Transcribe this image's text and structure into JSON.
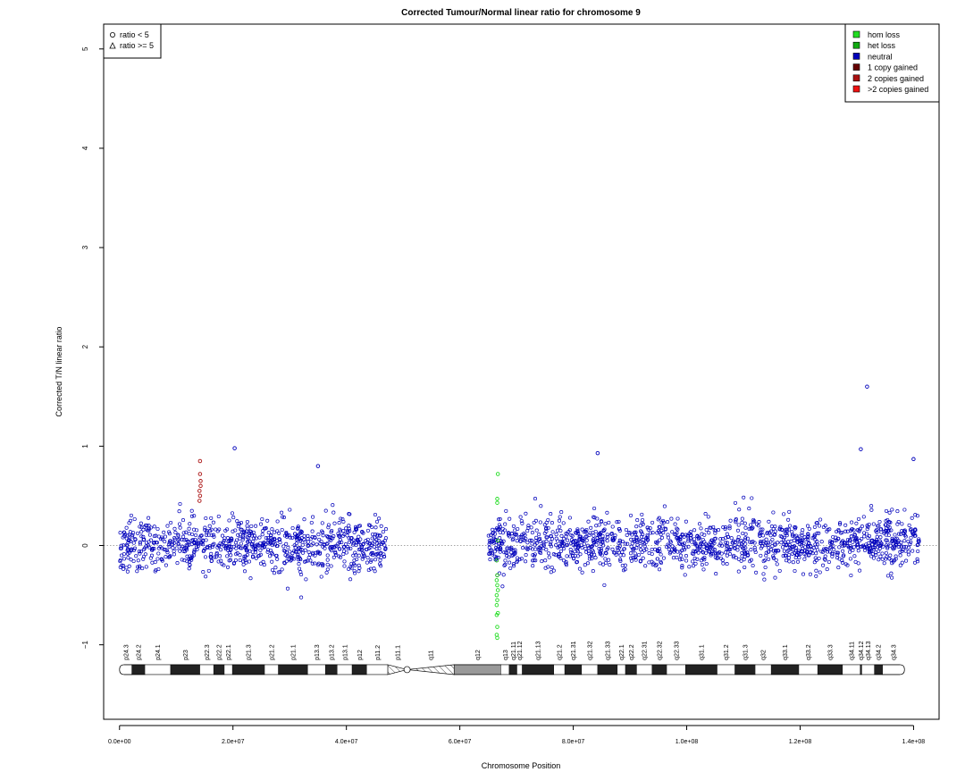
{
  "chart_data": {
    "type": "scatter",
    "title": "Corrected Tumour/Normal linear ratio for chromosome  9",
    "xlabel": "Chromosome Position",
    "ylabel": "Corrected T/N linear ratio",
    "xlim": [
      -2800000,
      144500000
    ],
    "ylim": [
      -1.75,
      5.25
    ],
    "x_ticks": [
      0,
      20000000,
      40000000,
      60000000,
      80000000,
      100000000,
      120000000,
      140000000
    ],
    "x_tick_labels": [
      "0.0e+00",
      "2.0e+07",
      "4.0e+07",
      "6.0e+07",
      "8.0e+07",
      "1.0e+08",
      "1.2e+08",
      "1.4e+08"
    ],
    "y_ticks": [
      -1,
      0,
      1,
      2,
      3,
      4,
      5
    ],
    "y_tick_labels": [
      "−1",
      "0",
      "1",
      "2",
      "3",
      "4",
      "5"
    ],
    "reference_line": 0,
    "shape_legend": {
      "position": "top-left",
      "entries": [
        {
          "symbol": "○",
          "label": "ratio < 5"
        },
        {
          "symbol": "△",
          "label": "ratio >= 5"
        }
      ]
    },
    "color_legend": {
      "position": "top-right",
      "entries": [
        {
          "label": "hom loss",
          "color": "#22dd22"
        },
        {
          "label": "het loss",
          "color": "#11aa11"
        },
        {
          "label": "neutral",
          "color": "#0000bb"
        },
        {
          "label": "1 copy gained",
          "color": "#660000"
        },
        {
          "label": "2 copies gained",
          "color": "#aa1111"
        },
        {
          "label": ">2 copies gained",
          "color": "#ee1111"
        }
      ]
    },
    "segments": [
      {
        "name": "neutral",
        "color": "#0000bb",
        "x_start": 0,
        "x_end": 47000000,
        "mean": 0.0,
        "sd": 0.13
      },
      {
        "name": "neutral",
        "color": "#0000bb",
        "x_start": 65000000,
        "x_end": 141000000,
        "mean": 0.02,
        "sd": 0.13
      }
    ],
    "highlighted_points": [
      {
        "x": 14200000,
        "y": 0.85,
        "class": "2 copies gained"
      },
      {
        "x": 14200000,
        "y": 0.72,
        "class": "2 copies gained"
      },
      {
        "x": 14300000,
        "y": 0.65,
        "class": "2 copies gained"
      },
      {
        "x": 14300000,
        "y": 0.6,
        "class": "2 copies gained"
      },
      {
        "x": 14100000,
        "y": 0.55,
        "class": "2 copies gained"
      },
      {
        "x": 14200000,
        "y": 0.5,
        "class": "2 copies gained"
      },
      {
        "x": 14100000,
        "y": 0.45,
        "class": "2 copies gained"
      },
      {
        "x": 20300000,
        "y": 0.98,
        "class": "neutral"
      },
      {
        "x": 131800000,
        "y": 1.6,
        "class": "neutral"
      },
      {
        "x": 84300000,
        "y": 0.93,
        "class": "neutral"
      },
      {
        "x": 130700000,
        "y": 0.97,
        "class": "neutral"
      },
      {
        "x": 140000000,
        "y": 0.87,
        "class": "neutral"
      },
      {
        "x": 35000000,
        "y": 0.8,
        "class": "neutral"
      },
      {
        "x": 66700000,
        "y": 0.72,
        "class": "hom loss"
      },
      {
        "x": 66600000,
        "y": 0.47,
        "class": "hom loss"
      },
      {
        "x": 66600000,
        "y": 0.43,
        "class": "hom loss"
      },
      {
        "x": 66500000,
        "y": -0.9,
        "class": "hom loss"
      },
      {
        "x": 66600000,
        "y": -0.93,
        "class": "hom loss"
      },
      {
        "x": 66600000,
        "y": -0.82,
        "class": "hom loss"
      },
      {
        "x": 66500000,
        "y": -0.7,
        "class": "hom loss"
      },
      {
        "x": 66700000,
        "y": -0.68,
        "class": "hom loss"
      },
      {
        "x": 66500000,
        "y": -0.6,
        "class": "hom loss"
      },
      {
        "x": 66600000,
        "y": -0.55,
        "class": "hom loss"
      },
      {
        "x": 66500000,
        "y": -0.5,
        "class": "hom loss"
      },
      {
        "x": 66700000,
        "y": -0.45,
        "class": "hom loss"
      },
      {
        "x": 66600000,
        "y": -0.4,
        "class": "hom loss"
      },
      {
        "x": 66500000,
        "y": -0.35,
        "class": "hom loss"
      },
      {
        "x": 66600000,
        "y": -0.3,
        "class": "het loss"
      },
      {
        "x": 66700000,
        "y": 0.05,
        "class": "het loss"
      },
      {
        "x": 66500000,
        "y": -0.15,
        "class": "het loss"
      }
    ],
    "ideogram": {
      "y": -1.25,
      "bands": [
        {
          "name": "p24.3",
          "start": 0,
          "end": 2200000,
          "stain": "white"
        },
        {
          "name": "p24.2",
          "start": 2200000,
          "end": 4500000,
          "stain": "black"
        },
        {
          "name": "p24.1",
          "start": 4500000,
          "end": 9000000,
          "stain": "white"
        },
        {
          "name": "p23",
          "start": 9000000,
          "end": 14200000,
          "stain": "black"
        },
        {
          "name": "p22.3",
          "start": 14200000,
          "end": 16600000,
          "stain": "white"
        },
        {
          "name": "p22.2",
          "start": 16600000,
          "end": 18500000,
          "stain": "black"
        },
        {
          "name": "p22.1",
          "start": 18500000,
          "end": 19900000,
          "stain": "white"
        },
        {
          "name": "p21.3",
          "start": 19900000,
          "end": 25600000,
          "stain": "black"
        },
        {
          "name": "p21.2",
          "start": 25600000,
          "end": 28000000,
          "stain": "white"
        },
        {
          "name": "p21.1",
          "start": 28000000,
          "end": 33200000,
          "stain": "black"
        },
        {
          "name": "p13.3",
          "start": 33200000,
          "end": 36300000,
          "stain": "white"
        },
        {
          "name": "p13.2",
          "start": 36300000,
          "end": 38400000,
          "stain": "black"
        },
        {
          "name": "p13.1",
          "start": 38400000,
          "end": 41000000,
          "stain": "white"
        },
        {
          "name": "p12",
          "start": 41000000,
          "end": 43600000,
          "stain": "black"
        },
        {
          "name": "p11.2",
          "start": 43600000,
          "end": 47300000,
          "stain": "white"
        },
        {
          "name": "p11.1",
          "start": 47300000,
          "end": 50700000,
          "stain": "hatched"
        },
        {
          "name": "q11",
          "start": 50700000,
          "end": 59000000,
          "stain": "hatched"
        },
        {
          "name": "q12",
          "start": 59000000,
          "end": 67300000,
          "stain": "gray"
        },
        {
          "name": "q13",
          "start": 67300000,
          "end": 68700000,
          "stain": "white"
        },
        {
          "name": "q21.11",
          "start": 68700000,
          "end": 70100000,
          "stain": "black"
        },
        {
          "name": "q21.12",
          "start": 70100000,
          "end": 71000000,
          "stain": "white"
        },
        {
          "name": "q21.13",
          "start": 71000000,
          "end": 76600000,
          "stain": "black"
        },
        {
          "name": "q21.2",
          "start": 76600000,
          "end": 78500000,
          "stain": "white"
        },
        {
          "name": "q21.31",
          "start": 78500000,
          "end": 81500000,
          "stain": "black"
        },
        {
          "name": "q21.32",
          "start": 81500000,
          "end": 84300000,
          "stain": "white"
        },
        {
          "name": "q21.33",
          "start": 84300000,
          "end": 87800000,
          "stain": "black"
        },
        {
          "name": "q22.1",
          "start": 87800000,
          "end": 89200000,
          "stain": "white"
        },
        {
          "name": "q22.2",
          "start": 89200000,
          "end": 91200000,
          "stain": "black"
        },
        {
          "name": "q22.31",
          "start": 91200000,
          "end": 93900000,
          "stain": "white"
        },
        {
          "name": "q22.32",
          "start": 93900000,
          "end": 96500000,
          "stain": "black"
        },
        {
          "name": "q22.33",
          "start": 96500000,
          "end": 99800000,
          "stain": "white"
        },
        {
          "name": "q31.1",
          "start": 99800000,
          "end": 105400000,
          "stain": "black"
        },
        {
          "name": "q31.2",
          "start": 105400000,
          "end": 108500000,
          "stain": "white"
        },
        {
          "name": "q31.3",
          "start": 108500000,
          "end": 112100000,
          "stain": "black"
        },
        {
          "name": "q32",
          "start": 112100000,
          "end": 114900000,
          "stain": "white"
        },
        {
          "name": "q33.1",
          "start": 114900000,
          "end": 119800000,
          "stain": "black"
        },
        {
          "name": "q33.2",
          "start": 119800000,
          "end": 123100000,
          "stain": "white"
        },
        {
          "name": "q33.3",
          "start": 123100000,
          "end": 127500000,
          "stain": "black"
        },
        {
          "name": "q34.11",
          "start": 127500000,
          "end": 130600000,
          "stain": "white"
        },
        {
          "name": "q34.12",
          "start": 130600000,
          "end": 130900000,
          "stain": "black"
        },
        {
          "name": "q34.13",
          "start": 130900000,
          "end": 133100000,
          "stain": "white"
        },
        {
          "name": "q34.2",
          "start": 133100000,
          "end": 134500000,
          "stain": "black"
        },
        {
          "name": "q34.3",
          "start": 134500000,
          "end": 138400000,
          "stain": "white"
        }
      ]
    }
  }
}
